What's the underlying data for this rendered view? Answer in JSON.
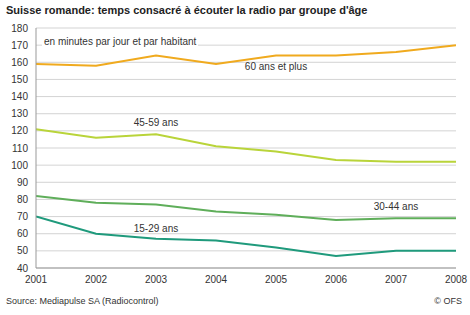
{
  "chart_data": {
    "type": "line",
    "title": "Suisse romande: temps consacré à écouter la radio par groupe d'âge",
    "y_label": "en minutes par jour et par habitant",
    "source": "Source: Mediapulse SA (Radiocontrol)",
    "credit": "© OFS",
    "x": [
      2001,
      2002,
      2003,
      2004,
      2005,
      2006,
      2007,
      2008
    ],
    "xlim": [
      2001,
      2008
    ],
    "xticks": [
      2001,
      2002,
      2003,
      2004,
      2005,
      2006,
      2007,
      2008
    ],
    "ylim": [
      40,
      180
    ],
    "yticks": [
      40,
      50,
      60,
      70,
      80,
      90,
      100,
      110,
      120,
      130,
      140,
      150,
      160,
      170,
      180
    ],
    "grid": true,
    "series": [
      {
        "name": "60 ans et plus",
        "color": "#f0aa1e",
        "values": [
          159,
          158,
          164,
          159,
          164,
          164,
          166,
          170
        ]
      },
      {
        "name": "45-59 ans",
        "color": "#b9d43a",
        "values": [
          121,
          116,
          118,
          111,
          108,
          103,
          102,
          102
        ]
      },
      {
        "name": "30-44 ans",
        "color": "#5fae5a",
        "values": [
          82,
          78,
          77,
          73,
          71,
          68,
          69,
          69
        ]
      },
      {
        "name": "15-29 ans",
        "color": "#1f9a7c",
        "values": [
          70,
          60,
          57,
          56,
          52,
          47,
          50,
          50
        ]
      }
    ]
  }
}
